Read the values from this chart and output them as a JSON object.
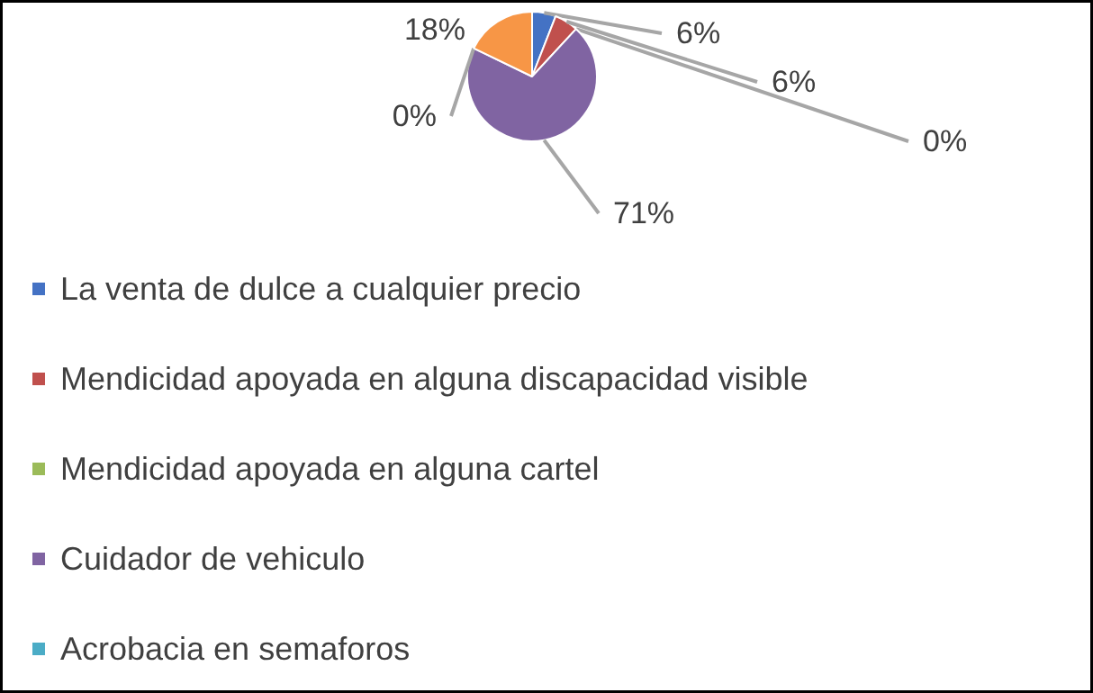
{
  "chart_data": {
    "type": "pie",
    "categories": [
      "La venta de dulce a cualquier precio",
      "Mendicidad apoyada en alguna discapacidad visible",
      "Mendicidad apoyada en alguna cartel",
      "Cuidador de vehiculo",
      "Acrobacia en semaforos",
      null
    ],
    "values": [
      6,
      6,
      0,
      71,
      0,
      18
    ],
    "colors": [
      "#4472c4",
      "#c0504d",
      "#9bbb59",
      "#8064a2",
      "#4bacc6",
      "#f79646"
    ],
    "value_labels": [
      "6%",
      "6%",
      "0%",
      "71%",
      "0%",
      "18%"
    ],
    "legend": "bottom"
  }
}
